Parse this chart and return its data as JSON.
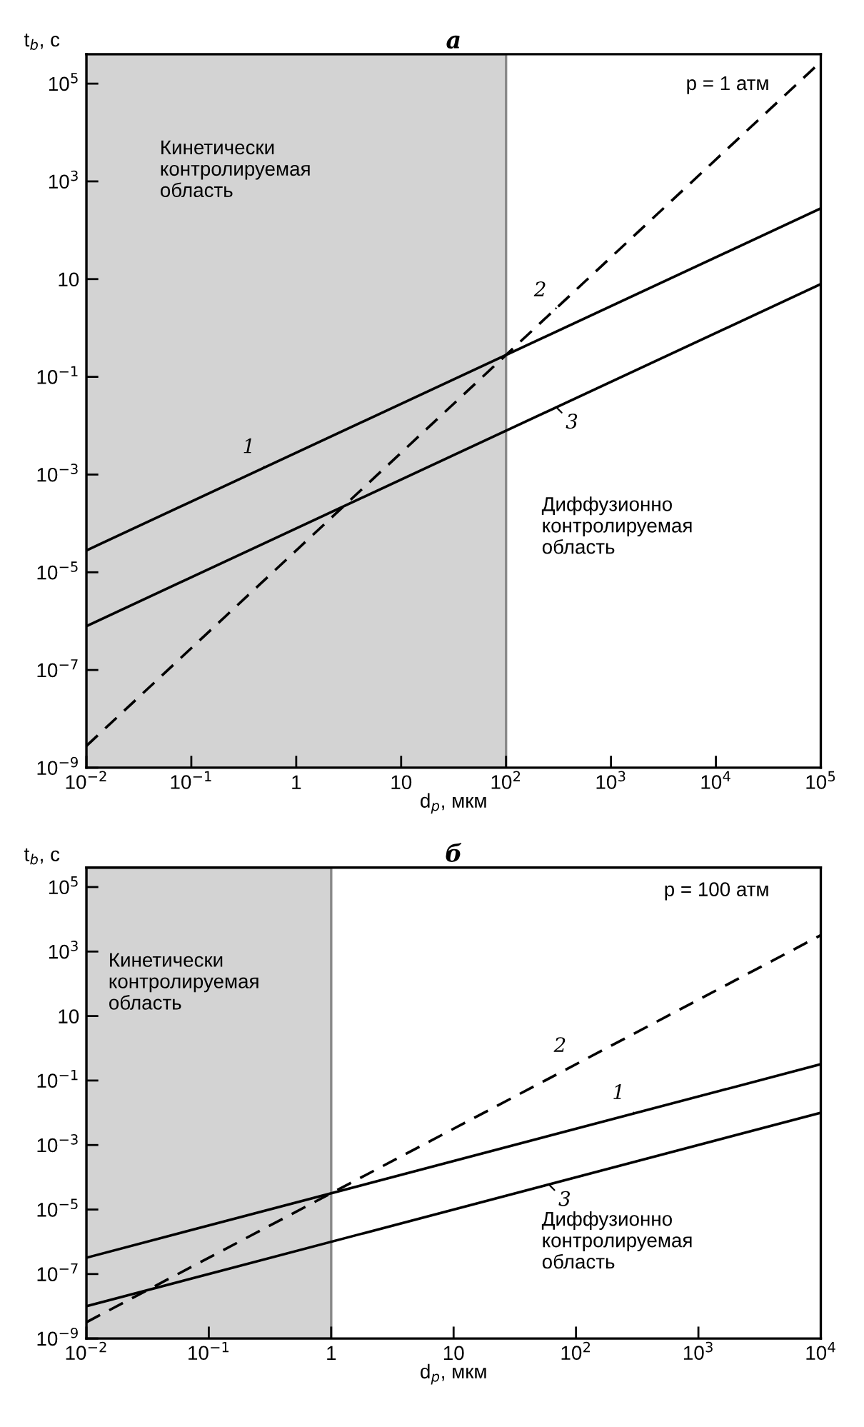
{
  "chart_data": [
    {
      "type": "line",
      "title": "а",
      "xlabel": "d$_{p}$, мкм",
      "ylabel": "t$_{b}$, с",
      "log": "xy",
      "grid": false,
      "legend": false,
      "x": [
        0.01,
        100000
      ],
      "xlim": [
        0.01,
        100000
      ],
      "xticks": [
        {
          "value": 0.01,
          "label": "10$^{−2}$"
        },
        {
          "value": 0.1,
          "label": "10$^{−1}$"
        },
        1,
        10,
        {
          "value": 100,
          "label": "10$^{2}$"
        },
        {
          "value": 1000,
          "label": "10$^{3}$"
        },
        {
          "value": 10000,
          "label": "10$^{4}$"
        },
        {
          "value": 100000,
          "label": "10$^{5}$"
        }
      ],
      "ylim": [
        1e-09,
        400000
      ],
      "yticks": [
        {
          "value": 1e-09,
          "label": "10$^{−9}$"
        },
        {
          "value": 1e-07,
          "label": "10$^{−7}$"
        },
        {
          "value": 1e-05,
          "label": "10$^{−5}$"
        },
        {
          "value": 0.001,
          "label": "10$^{−3}$"
        },
        {
          "value": 0.1,
          "label": "10$^{−1}$"
        },
        10,
        {
          "value": 1000,
          "label": "10$^{3}$"
        },
        {
          "value": 100000,
          "label": "10$^{5}$"
        }
      ],
      "series": [
        {
          "color": "#000000",
          "line_style": "solid",
          "values": [
            2.8e-05,
            280
          ]
        },
        {
          "color": "#000000",
          "line_style": "dashed",
          "values": [
            2.8e-09,
            280000
          ]
        },
        {
          "color": "#000000",
          "line_style": "solid",
          "values": [
            7.9e-07,
            7.9
          ]
        }
      ],
      "bands": [
        {
          "axis": "x",
          "from": 0.01,
          "to": 100,
          "color": "#d3d3d3"
        }
      ],
      "annotations": [
        "p = 1 атм",
        "Кинетически\nконтролируемая\nобласть",
        "Диффузионно\nконтролируемая\nобласть",
        {
          "text": "1",
          "x": 0.5,
          "y": 0.0014
        },
        {
          "text": "2",
          "x": 300,
          "y": 2.5
        },
        {
          "text": "3",
          "x": 300,
          "y": 0.024
        }
      ]
    },
    {
      "type": "line",
      "title": "б",
      "xlabel": "d$_{p}$, мкм",
      "ylabel": "t$_{b}$, с",
      "log": "xy",
      "grid": false,
      "legend": false,
      "x": [
        0.01,
        10000
      ],
      "xlim": [
        0.01,
        10000
      ],
      "xticks": [
        {
          "value": 0.01,
          "label": "10$^{−2}$"
        },
        {
          "value": 0.1,
          "label": "10$^{−1}$"
        },
        1,
        10,
        {
          "value": 100,
          "label": "10$^{2}$"
        },
        {
          "value": 1000,
          "label": "10$^{3}$"
        },
        {
          "value": 10000,
          "label": "10$^{4}$"
        }
      ],
      "ylim": [
        1e-09,
        400000
      ],
      "yticks": [
        {
          "value": 1e-09,
          "label": "10$^{−9}$"
        },
        {
          "value": 1e-07,
          "label": "10$^{−7}$"
        },
        {
          "value": 1e-05,
          "label": "10$^{−5}$"
        },
        {
          "value": 0.001,
          "label": "10$^{−3}$"
        },
        {
          "value": 0.1,
          "label": "10$^{−1}$"
        },
        10,
        {
          "value": 1000,
          "label": "10$^{3}$"
        },
        {
          "value": 100000,
          "label": "10$^{5}$"
        }
      ],
      "series": [
        {
          "color": "#000000",
          "line_style": "solid",
          "values": [
            3.2e-07,
            0.32
          ]
        },
        {
          "color": "#000000",
          "line_style": "dashed",
          "values": [
            3.2e-09,
            3200
          ]
        },
        {
          "color": "#000000",
          "line_style": "solid",
          "values": [
            1e-08,
            0.01
          ]
        }
      ],
      "bands": [
        {
          "axis": "x",
          "from": 0.01,
          "to": 1,
          "color": "#d3d3d3"
        }
      ],
      "annotations": [
        "p = 100 атм",
        "Кинетически\nконтролируемая\nобласть",
        "Диффузионно\nконтролируемая\nобласть",
        {
          "text": "1",
          "x": 300,
          "y": 0.0096
        },
        {
          "text": "2",
          "x": 100,
          "y": 0.32
        },
        {
          "text": "3",
          "x": 60,
          "y": 6e-05
        }
      ]
    }
  ]
}
